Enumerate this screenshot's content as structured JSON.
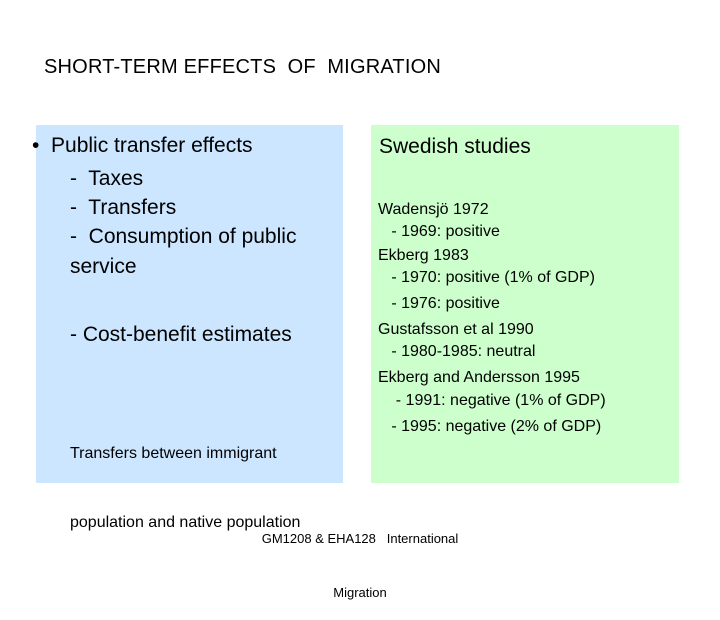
{
  "title": "SHORT-TERM EFFECTS  OF  MIGRATION",
  "left": {
    "bullet": "•  Public transfer effects",
    "lines": [
      "-  Taxes",
      "-  Transfers",
      "-  Consumption of public",
      "service"
    ],
    "cost_benefit": "- Cost-benefit estimates",
    "note": [
      "Transfers between immigrant",
      "population and native population"
    ]
  },
  "right": {
    "heading": "Swedish studies",
    "studies": [
      "Wadensjö 1972",
      "   - 1969: positive",
      "Ekberg 1983",
      "   - 1970: positive (1% of GDP)",
      "   - 1976: positive",
      "Gustafsson et al 1990",
      "   - 1980-1985: neutral",
      "Ekberg and Andersson 1995",
      "    - 1991: negative (1% of GDP)",
      "   - 1995: negative (2% of GDP)"
    ]
  },
  "footer": [
    "GM1208 & EHA128   International",
    "Migration"
  ],
  "colors": {
    "left_panel": "#cce6ff",
    "right_panel": "#ccffcc"
  }
}
